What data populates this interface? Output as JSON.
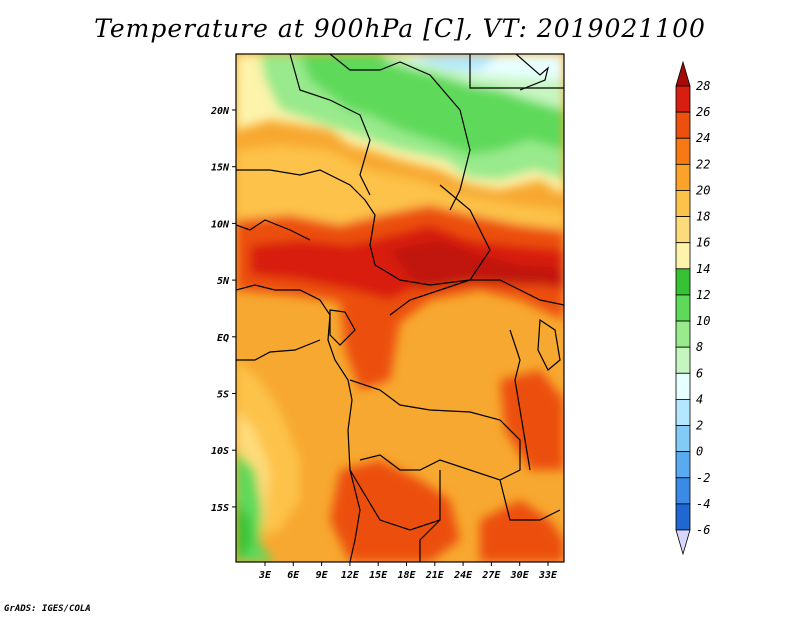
{
  "title": "Temperature at 900hPa [C], VT: 2019021100",
  "footer": "GrADS: IGES/COLA",
  "map": {
    "lat_labels": [
      "20N",
      "15N",
      "10N",
      "5N",
      "EQ",
      "5S",
      "10S",
      "15S"
    ],
    "lon_labels": [
      "3E",
      "6E",
      "9E",
      "12E",
      "15E",
      "18E",
      "21E",
      "24E",
      "27E",
      "30E",
      "33E"
    ]
  },
  "colorbar": {
    "labels": [
      "28",
      "26",
      "24",
      "22",
      "20",
      "18",
      "16",
      "14",
      "12",
      "10",
      "8",
      "6",
      "4",
      "2",
      "0",
      "-2",
      "-4",
      "-6"
    ],
    "colors": [
      "#a50a0a",
      "#d81e10",
      "#ec500f",
      "#f57a16",
      "#fba22a",
      "#fdc24a",
      "#fedb7a",
      "#fdf3ab",
      "#37c235",
      "#5fd95a",
      "#98ea8c",
      "#c6f6c0",
      "#e8ffff",
      "#b4e7ff",
      "#82cbf7",
      "#5aaaf0",
      "#3a8ae6",
      "#2067d2",
      "#1545b0",
      "#102a8a",
      "#0a0a5a",
      "#d8d8ff"
    ]
  }
}
